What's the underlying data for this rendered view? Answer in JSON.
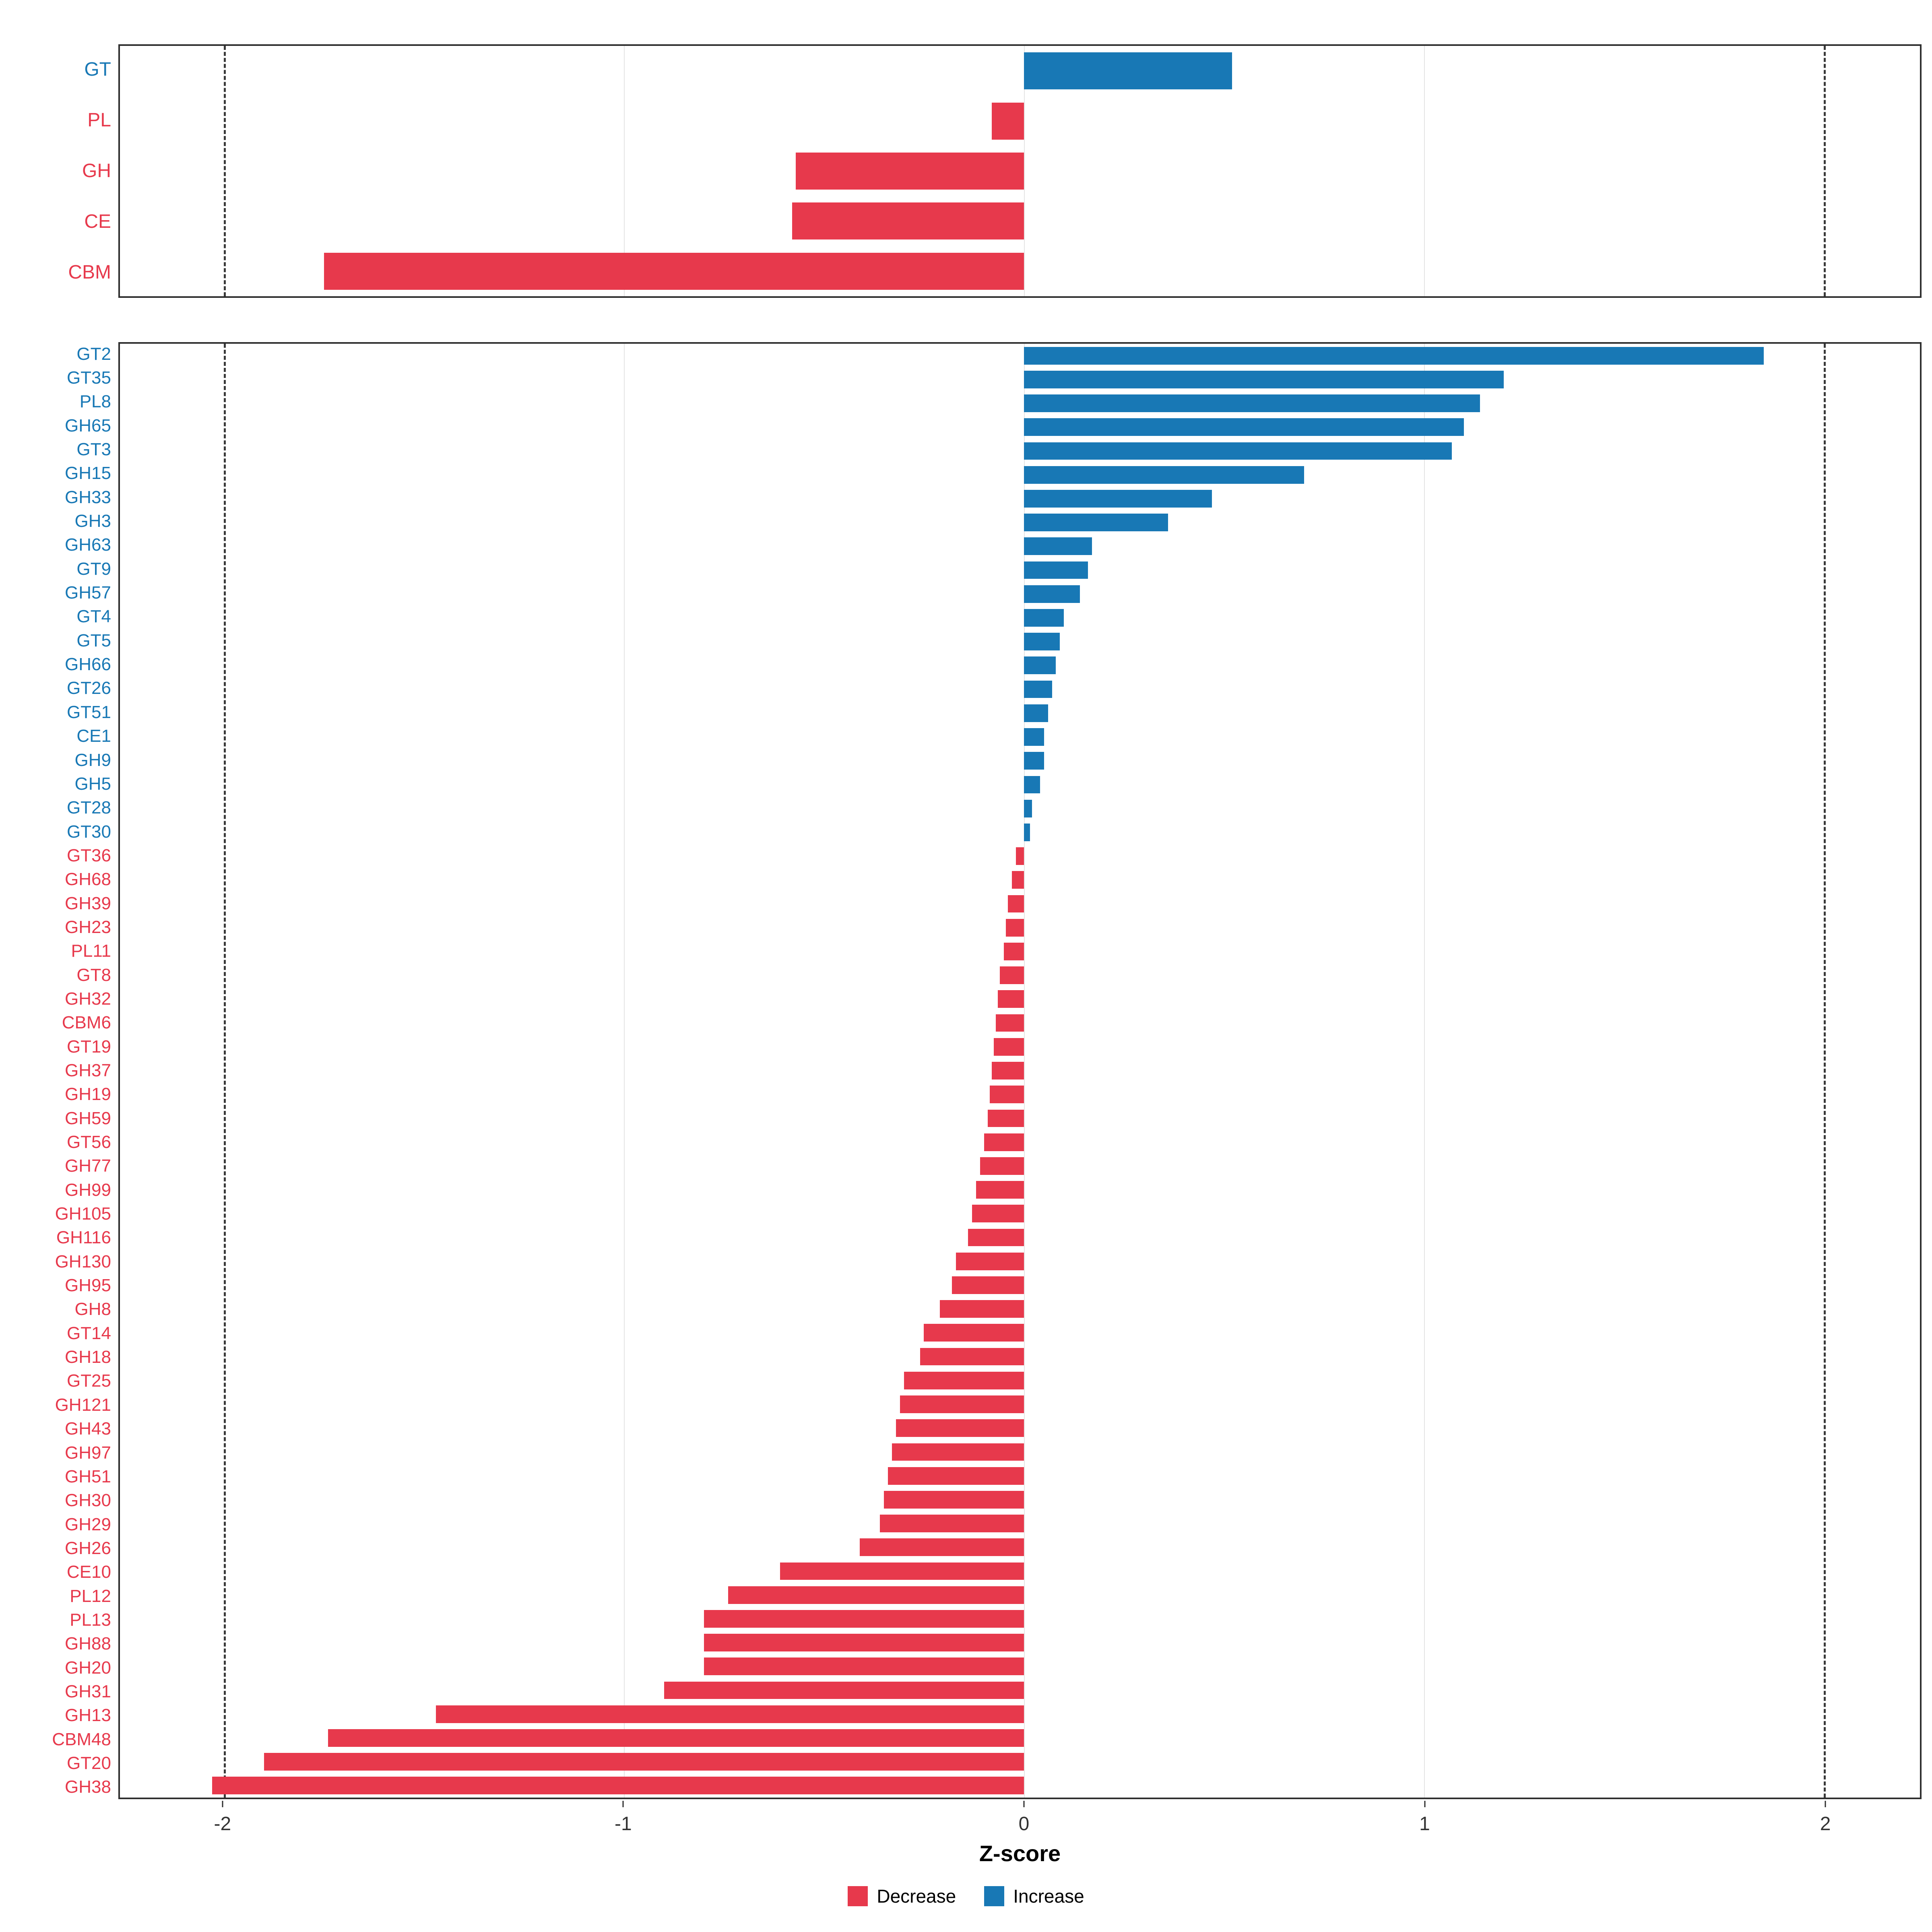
{
  "xlabel": "Z-score",
  "colors": {
    "increase": "#1878B5",
    "decrease": "#E7394C",
    "grid": "#e4e4e4",
    "dashed": "#3a3a3a",
    "border": "#2e2e2e"
  },
  "axis": {
    "min": -2.26,
    "max": 2.24,
    "ticks": [
      -2,
      -1,
      0,
      1,
      2
    ],
    "dashed_at": [
      -2,
      2
    ]
  },
  "legend": [
    {
      "label": "Decrease",
      "color_key": "decrease"
    },
    {
      "label": "Increase",
      "color_key": "increase"
    }
  ],
  "chart_data": [
    {
      "type": "bar",
      "orientation": "horizontal",
      "panel": "summary",
      "title": "",
      "xlabel": "Z-score",
      "xlim": [
        -2.26,
        2.24
      ],
      "categories": [
        "GT",
        "PL",
        "GH",
        "CE",
        "CBM"
      ],
      "values": [
        0.52,
        -0.08,
        -0.57,
        -0.58,
        -1.75
      ]
    },
    {
      "type": "bar",
      "orientation": "horizontal",
      "panel": "families",
      "title": "",
      "xlabel": "Z-score",
      "xlim": [
        -2.26,
        2.24
      ],
      "categories": [
        "GT2",
        "GT35",
        "PL8",
        "GH65",
        "GT3",
        "GH15",
        "GH33",
        "GH3",
        "GH63",
        "GT9",
        "GH57",
        "GT4",
        "GT5",
        "GH66",
        "GT26",
        "GT51",
        "CE1",
        "GH9",
        "GH5",
        "GT28",
        "GT30",
        "GT36",
        "GH68",
        "GH39",
        "GH23",
        "PL11",
        "GT8",
        "GH32",
        "CBM6",
        "GT19",
        "GH37",
        "GH19",
        "GH59",
        "GT56",
        "GH77",
        "GH99",
        "GH105",
        "GH116",
        "GH130",
        "GH95",
        "GH8",
        "GT14",
        "GH18",
        "GT25",
        "GH121",
        "GH43",
        "GH97",
        "GH51",
        "GH30",
        "GH29",
        "GH26",
        "CE10",
        "PL12",
        "PL13",
        "GH88",
        "GH20",
        "GH31",
        "GH13",
        "CBM48",
        "GT20",
        "GH38"
      ],
      "values": [
        1.85,
        1.2,
        1.14,
        1.1,
        1.07,
        0.7,
        0.47,
        0.36,
        0.17,
        0.16,
        0.14,
        0.1,
        0.09,
        0.08,
        0.07,
        0.06,
        0.05,
        0.05,
        0.04,
        0.02,
        0.015,
        -0.02,
        -0.03,
        -0.04,
        -0.045,
        -0.05,
        -0.06,
        -0.065,
        -0.07,
        -0.075,
        -0.08,
        -0.085,
        -0.09,
        -0.1,
        -0.11,
        -0.12,
        -0.13,
        -0.14,
        -0.17,
        -0.18,
        -0.21,
        -0.25,
        -0.26,
        -0.3,
        -0.31,
        -0.32,
        -0.33,
        -0.34,
        -0.35,
        -0.36,
        -0.41,
        -0.61,
        -0.74,
        -0.8,
        -0.8,
        -0.8,
        -0.9,
        -1.47,
        -1.74,
        -1.9,
        -2.03
      ]
    }
  ]
}
